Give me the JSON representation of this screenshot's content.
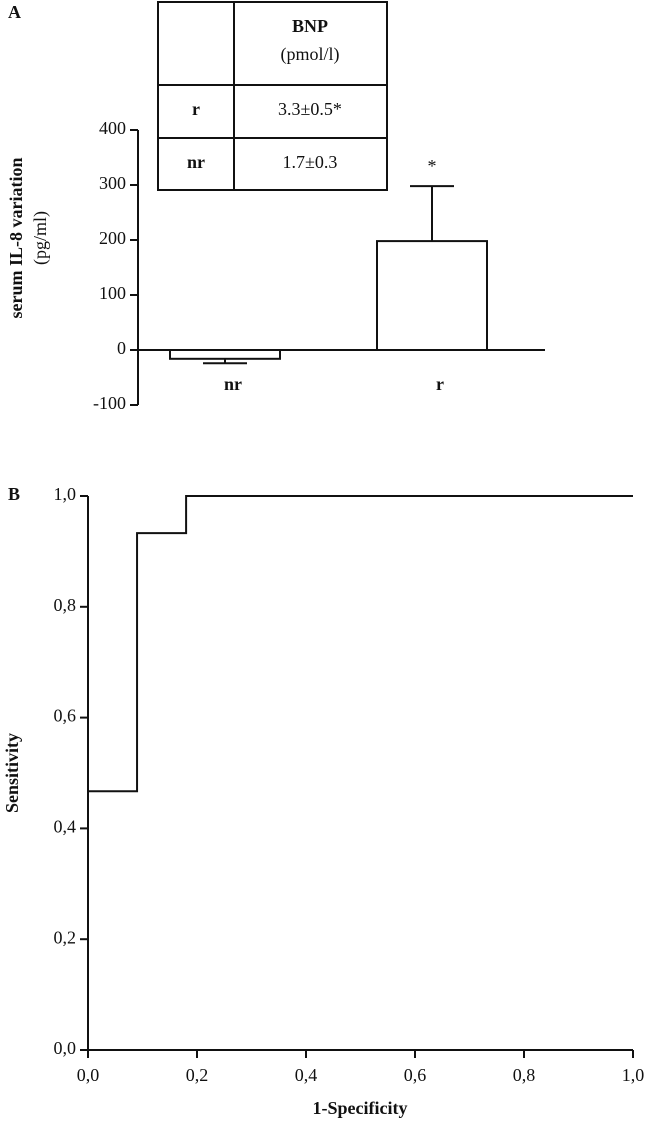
{
  "chart_data": [
    {
      "type": "bar",
      "panel": "A",
      "ylabel": "serum IL-8 variation",
      "yunit": "(pg/ml)",
      "categories": [
        "nr",
        "r"
      ],
      "values": [
        -16,
        198
      ],
      "errors": [
        8,
        100
      ],
      "color": "#ffffff",
      "annotation": "*",
      "annotation_category": 1,
      "ylim": [
        -100,
        400
      ],
      "yticks": [
        -100,
        0,
        100,
        200,
        300,
        400
      ],
      "table": {
        "header": [
          "BNP",
          "(pmol/l)"
        ],
        "rows": [
          [
            "r",
            "3.3±0.5*"
          ],
          [
            "nr",
            "1.7±0.3"
          ]
        ]
      }
    },
    {
      "type": "line",
      "panel": "B",
      "xlabel": "1-Specificity",
      "ylabel": "Sensitivity",
      "color": "#555555",
      "x": [
        0,
        0,
        0.09,
        0.09,
        0.18,
        0.18,
        1
      ],
      "y": [
        0,
        0.467,
        0.467,
        0.933,
        0.933,
        1,
        1
      ],
      "xlim": [
        0,
        1
      ],
      "ylim": [
        0,
        1
      ],
      "xticks": [
        {
          "value": 0,
          "label": "0,0"
        },
        {
          "value": 0.2,
          "label": "0,2"
        },
        {
          "value": 0.4,
          "label": "0,4"
        },
        {
          "value": 0.6,
          "label": "0,6"
        },
        {
          "value": 0.8,
          "label": "0,8"
        },
        {
          "value": 1,
          "label": "1,0"
        }
      ],
      "yticks": [
        {
          "value": 0,
          "label": "0,0"
        },
        {
          "value": 0.2,
          "label": "0,2"
        },
        {
          "value": 0.4,
          "label": "0,4"
        },
        {
          "value": 0.6,
          "label": "0,6"
        },
        {
          "value": 0.8,
          "label": "0,8"
        },
        {
          "value": 1,
          "label": "1,0"
        }
      ]
    }
  ]
}
